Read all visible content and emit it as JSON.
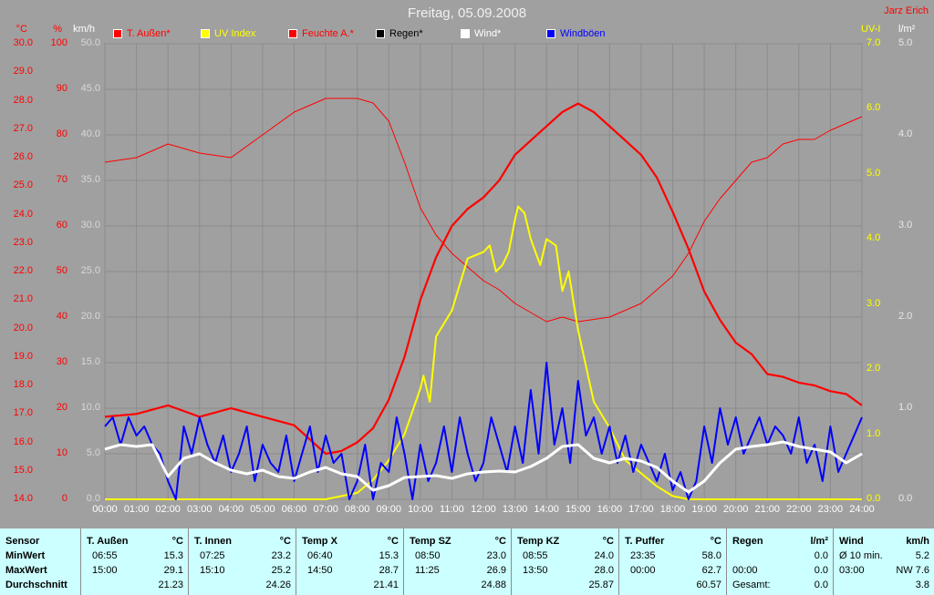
{
  "title": "Freitag, 05.09.2008",
  "author": "Jarz Erich",
  "axes": {
    "unit_temp": "°C",
    "unit_hum": "%",
    "unit_kmh": "km/h",
    "unit_uv": "UV-I",
    "unit_rain": "l/m²",
    "temp_ticks": [
      "30.0",
      "29.0",
      "28.0",
      "27.0",
      "26.0",
      "25.0",
      "24.0",
      "23.0",
      "22.0",
      "21.0",
      "20.0",
      "19.0",
      "18.0",
      "17.0",
      "16.0",
      "15.0",
      "14.0"
    ],
    "hum_ticks": [
      "100",
      "90",
      "80",
      "70",
      "60",
      "50",
      "40",
      "30",
      "20",
      "10",
      "0"
    ],
    "kmh_ticks": [
      "50.0",
      "45.0",
      "40.0",
      "35.0",
      "30.0",
      "25.0",
      "20.0",
      "15.0",
      "10.0",
      "5.0",
      "0.0"
    ],
    "uv_ticks": [
      "7.0",
      "6.0",
      "5.0",
      "4.0",
      "3.0",
      "2.0",
      "1.0",
      "0.0"
    ],
    "rain_ticks": [
      "5.0",
      "4.0",
      "3.0",
      "2.0",
      "1.0",
      "0.0"
    ],
    "time_ticks": [
      "00:00",
      "01:00",
      "02:00",
      "03:00",
      "04:00",
      "05:00",
      "06:00",
      "07:00",
      "08:00",
      "09:00",
      "10:00",
      "11:00",
      "12:00",
      "13:00",
      "14:00",
      "15:00",
      "16:00",
      "17:00",
      "18:00",
      "19:00",
      "20:00",
      "21:00",
      "22:00",
      "23:00",
      "24:00"
    ]
  },
  "legend": [
    {
      "label": "T. Außen*",
      "color": "#ff0000"
    },
    {
      "label": "UV Index",
      "color": "#ffff00"
    },
    {
      "label": "Feuchte A.*",
      "color": "#ff0000"
    },
    {
      "label": "Regen*",
      "color": "#000000"
    },
    {
      "label": "Wind*",
      "color": "#ffffff"
    },
    {
      "label": "Windböen",
      "color": "#0000ff"
    }
  ],
  "chart_data": {
    "type": "line",
    "x_unit": "hours",
    "xlim": [
      0,
      24
    ],
    "series": [
      {
        "name": "T. Außen*",
        "axis": "temp",
        "color": "#ff0000",
        "x": [
          0,
          1,
          2,
          3,
          4,
          5,
          6,
          7,
          7.5,
          8,
          8.5,
          9,
          9.5,
          10,
          10.5,
          11,
          11.5,
          12,
          12.5,
          13,
          13.5,
          14,
          14.5,
          15,
          15.5,
          16,
          16.5,
          17,
          17.5,
          18,
          18.5,
          19,
          19.5,
          20,
          20.5,
          21,
          21.5,
          22,
          22.5,
          23,
          23.5,
          24
        ],
        "values": [
          16.9,
          17.0,
          17.3,
          16.9,
          17.2,
          16.9,
          16.6,
          15.6,
          15.7,
          16.0,
          16.5,
          17.5,
          19.0,
          21.0,
          22.5,
          23.6,
          24.2,
          24.6,
          25.2,
          26.1,
          26.6,
          27.1,
          27.6,
          27.9,
          27.6,
          27.1,
          26.6,
          26.1,
          25.3,
          24.1,
          22.8,
          21.3,
          20.3,
          19.5,
          19.1,
          18.4,
          18.3,
          18.1,
          18.0,
          17.8,
          17.7,
          17.3
        ]
      },
      {
        "name": "Feuchte A.*",
        "axis": "hum",
        "color": "#ff0000",
        "x": [
          0,
          1,
          2,
          3,
          4,
          5,
          6,
          7,
          8,
          8.5,
          9,
          9.5,
          10,
          10.5,
          11,
          11.5,
          12,
          12.5,
          13,
          13.5,
          14,
          14.5,
          15,
          16,
          17,
          18,
          18.5,
          19,
          19.5,
          20,
          20.5,
          21,
          21.5,
          22,
          22.5,
          23,
          24
        ],
        "values": [
          74,
          75,
          78,
          76,
          75,
          80,
          85,
          88,
          88,
          87,
          83,
          74,
          64,
          58,
          54,
          51,
          48,
          46,
          43,
          41,
          39,
          40,
          39,
          40,
          43,
          49,
          54,
          61,
          66,
          70,
          74,
          75,
          78,
          79,
          79,
          81,
          84
        ]
      },
      {
        "name": "UV Index",
        "axis": "uv",
        "color": "#ffff00",
        "x": [
          0,
          7,
          8,
          8.5,
          9,
          9.5,
          10,
          10.1,
          10.3,
          10.5,
          11,
          11.5,
          12,
          12.2,
          12.4,
          12.6,
          12.8,
          13,
          13.1,
          13.3,
          13.5,
          13.8,
          14,
          14.3,
          14.5,
          14.7,
          14.9,
          15,
          15.5,
          16,
          16.5,
          17,
          17.5,
          18,
          18.5,
          19,
          24
        ],
        "values": [
          0,
          0,
          0.1,
          0.3,
          0.6,
          1.0,
          1.7,
          1.9,
          1.5,
          2.5,
          2.9,
          3.7,
          3.8,
          3.9,
          3.5,
          3.6,
          3.8,
          4.3,
          4.5,
          4.4,
          4.0,
          3.6,
          4.0,
          3.9,
          3.2,
          3.5,
          2.9,
          2.6,
          1.5,
          1.1,
          0.6,
          0.4,
          0.2,
          0.05,
          0,
          0,
          0
        ]
      },
      {
        "name": "Wind*",
        "axis": "kmh",
        "color": "#ffffff",
        "x": [
          0,
          0.5,
          1,
          1.5,
          2,
          2.5,
          3,
          3.5,
          4,
          4.5,
          5,
          5.5,
          6,
          6.5,
          7,
          7.5,
          8,
          8.5,
          9,
          9.5,
          10,
          10.5,
          11,
          11.5,
          12,
          12.5,
          13,
          13.5,
          14,
          14.5,
          15,
          15.5,
          16,
          16.5,
          17,
          17.5,
          18,
          18.5,
          19,
          19.5,
          20,
          20.5,
          21,
          21.5,
          22,
          22.5,
          23,
          23.5,
          24
        ],
        "values": [
          5.5,
          6.0,
          5.8,
          6.0,
          2.5,
          4.5,
          5.0,
          4.0,
          3.2,
          2.8,
          3.2,
          2.5,
          2.3,
          3.0,
          3.5,
          2.8,
          2.5,
          1.0,
          1.5,
          2.4,
          2.5,
          2.6,
          2.3,
          2.8,
          3.0,
          3.1,
          3.0,
          3.6,
          4.5,
          5.8,
          6.0,
          4.5,
          4.0,
          4.5,
          4.2,
          3.5,
          2.0,
          0.8,
          2.0,
          4.0,
          5.5,
          5.8,
          6.0,
          6.3,
          5.8,
          5.5,
          5.2,
          4.0,
          5.0
        ]
      },
      {
        "name": "Windböen",
        "axis": "kmh",
        "color": "#0000ff",
        "x": [
          0,
          0.25,
          0.5,
          0.75,
          1,
          1.25,
          1.5,
          1.75,
          2,
          2.25,
          2.5,
          2.75,
          3,
          3.25,
          3.5,
          3.75,
          4,
          4.25,
          4.5,
          4.75,
          5,
          5.25,
          5.5,
          5.75,
          6,
          6.25,
          6.5,
          6.75,
          7,
          7.25,
          7.5,
          7.75,
          8,
          8.25,
          8.5,
          8.75,
          9,
          9.25,
          9.5,
          9.75,
          10,
          10.25,
          10.5,
          10.75,
          11,
          11.25,
          11.5,
          11.75,
          12,
          12.25,
          12.5,
          12.75,
          13,
          13.25,
          13.5,
          13.75,
          14,
          14.25,
          14.5,
          14.75,
          15,
          15.25,
          15.5,
          15.75,
          16,
          16.25,
          16.5,
          16.75,
          17,
          17.25,
          17.5,
          17.75,
          18,
          18.25,
          18.5,
          18.75,
          19,
          19.25,
          19.5,
          19.75,
          20,
          20.25,
          20.5,
          20.75,
          21,
          21.25,
          21.5,
          21.75,
          22,
          22.25,
          22.5,
          22.75,
          23,
          23.25,
          23.5,
          23.75,
          24
        ],
        "values": [
          8,
          9,
          6,
          9,
          7,
          8,
          6,
          5,
          2,
          0,
          8,
          5,
          9,
          6,
          4,
          7,
          3,
          5,
          8,
          2,
          6,
          4,
          3,
          7,
          2,
          5,
          8,
          3,
          7,
          4,
          5,
          0,
          2,
          6,
          0,
          4,
          3,
          9,
          5,
          0,
          6,
          2,
          4,
          8,
          3,
          9,
          5,
          2,
          4,
          9,
          6,
          3,
          8,
          4,
          12,
          5,
          15,
          6,
          10,
          4,
          13,
          7,
          9,
          5,
          8,
          4,
          7,
          3,
          6,
          4,
          2,
          5,
          1,
          3,
          0,
          2,
          8,
          4,
          10,
          6,
          9,
          5,
          7,
          9,
          6,
          8,
          7,
          5,
          9,
          4,
          6,
          2,
          8,
          3,
          5,
          7,
          9
        ]
      }
    ]
  },
  "summary": {
    "labels": {
      "sensor": "Sensor",
      "min": "MinWert",
      "max": "MaxWert",
      "avg": "Durchschnitt"
    },
    "columns": [
      {
        "name": "T. Außen",
        "unit": "°C",
        "min_time": "06:55",
        "min_val": "15.3",
        "max_time": "15:00",
        "max_val": "29.1",
        "avg": "21.23"
      },
      {
        "name": "T. Innen",
        "unit": "°C",
        "min_time": "07:25",
        "min_val": "23.2",
        "max_time": "15:10",
        "max_val": "25.2",
        "avg": "24.26"
      },
      {
        "name": "Temp X",
        "unit": "°C",
        "min_time": "06:40",
        "min_val": "15.3",
        "max_time": "14:50",
        "max_val": "28.7",
        "avg": "21.41"
      },
      {
        "name": "Temp SZ",
        "unit": "°C",
        "min_time": "08:50",
        "min_val": "23.0",
        "max_time": "11:25",
        "max_val": "26.9",
        "avg": "24.88"
      },
      {
        "name": "Temp KZ",
        "unit": "°C",
        "min_time": "08:55",
        "min_val": "24.0",
        "max_time": "13:50",
        "max_val": "28.0",
        "avg": "25.87"
      },
      {
        "name": "T. Puffer",
        "unit": "°C",
        "min_time": "23:35",
        "min_val": "58.0",
        "max_time": "00:00",
        "max_val": "62.7",
        "avg": "60.57"
      },
      {
        "name": "Regen",
        "unit": "l/m²",
        "min_time": "",
        "min_val": "0.0",
        "max_time": "00:00",
        "max_val": "0.0",
        "avg_label": "Gesamt:",
        "avg": "0.0"
      },
      {
        "name": "Wind",
        "unit": "km/h",
        "min_time": "Ø 10 min.",
        "min_val": "5.2",
        "max_time": "03:00",
        "max_val": "NW 7.6",
        "avg": "3.8"
      }
    ]
  }
}
